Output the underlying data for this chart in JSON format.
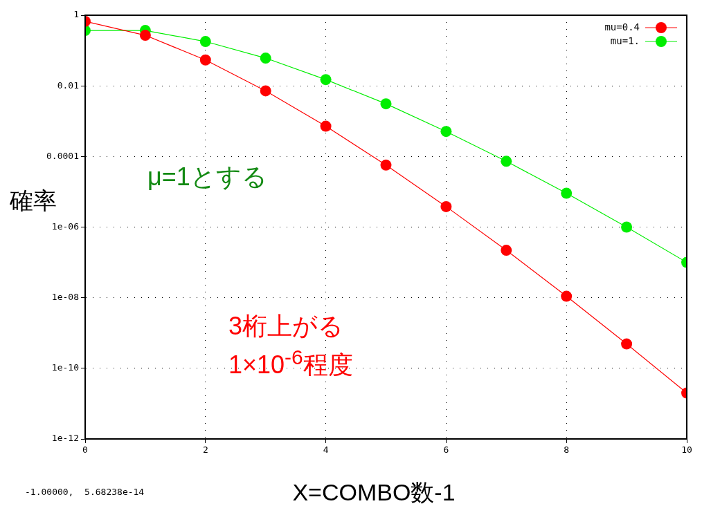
{
  "chart_data": {
    "type": "line",
    "xlabel": "X=COMBO数-1",
    "ylabel": "確率",
    "annotations": [
      "μ=1とする",
      "3桁上がる",
      "1×10$^{-6}$程度",
      "-1.00000,  5.68238e-14"
    ],
    "x": [
      0,
      1,
      2,
      3,
      4,
      5,
      6,
      7,
      8,
      9,
      10
    ],
    "series": [
      {
        "name": "mu=0.4",
        "color": "#ff0000",
        "values": [
          0.67,
          0.27,
          0.054,
          0.0072,
          0.00072,
          5.7e-05,
          3.8e-06,
          2.2e-07,
          1.1e-08,
          4.9e-10,
          2e-11
        ]
      },
      {
        "name": "mu=1.",
        "color": "#00ee00",
        "values": [
          0.37,
          0.37,
          0.18,
          0.061,
          0.015,
          0.0031,
          0.00051,
          7.3e-05,
          9.1e-06,
          1e-06,
          1e-07
        ]
      }
    ],
    "log": "y",
    "xlim": [
      0,
      10
    ],
    "xticks": [
      0,
      2,
      4,
      6,
      8,
      10
    ],
    "ylim": [
      1e-12,
      1
    ],
    "yticks": [
      1,
      0.01,
      0.0001,
      {
        "value": 1e-06,
        "label": "1e-06"
      },
      {
        "value": 1e-08,
        "label": "1e-08"
      },
      {
        "value": 1e-10,
        "label": "1e-10"
      },
      {
        "value": 1e-12,
        "label": "1e-12"
      }
    ],
    "grid": true,
    "legend": "top right",
    "marker": "circle",
    "line_style": "solid"
  }
}
